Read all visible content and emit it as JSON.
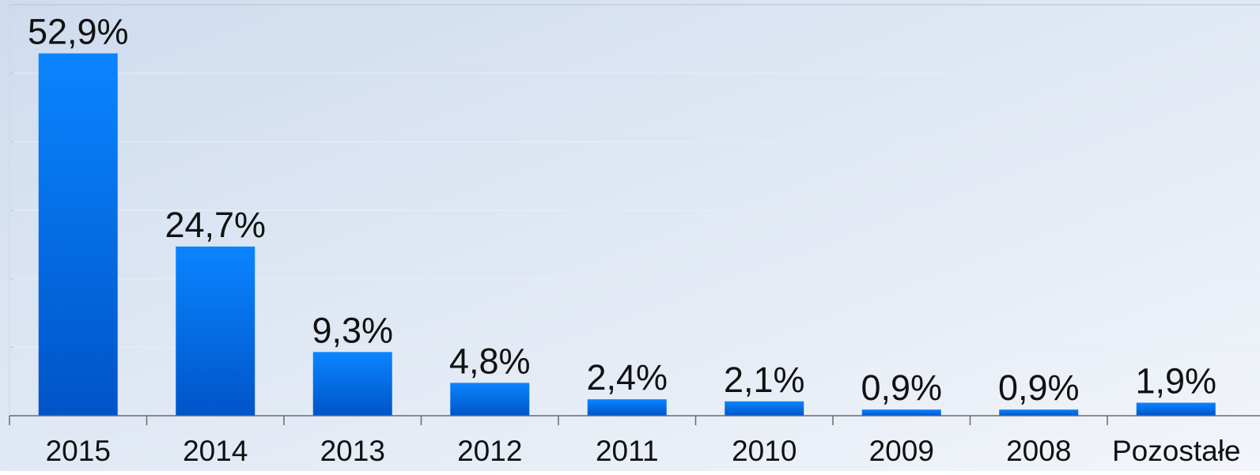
{
  "chart_data": {
    "type": "bar",
    "categories": [
      "2015",
      "2014",
      "2013",
      "2012",
      "2011",
      "2010",
      "2009",
      "2008",
      "Pozostałe"
    ],
    "values": [
      52.9,
      24.7,
      9.3,
      4.8,
      2.4,
      2.1,
      0.9,
      0.9,
      1.9
    ],
    "data_labels": [
      "52,9%",
      "24,7%",
      "9,3%",
      "4,8%",
      "2,4%",
      "2,1%",
      "0,9%",
      "0,9%",
      "1,9%"
    ],
    "title": "",
    "xlabel": "",
    "ylabel": "",
    "ylim": [
      0,
      60
    ],
    "grid": true,
    "legend": "none",
    "colors": {
      "bar_top": "#0a85ff",
      "bar_bottom": "#0054c8",
      "background_left": "#cfdcee",
      "background_right": "#f2f5fa",
      "grid": "#e8edf4",
      "axis": "#6b6b6b",
      "text": "#111111"
    }
  }
}
